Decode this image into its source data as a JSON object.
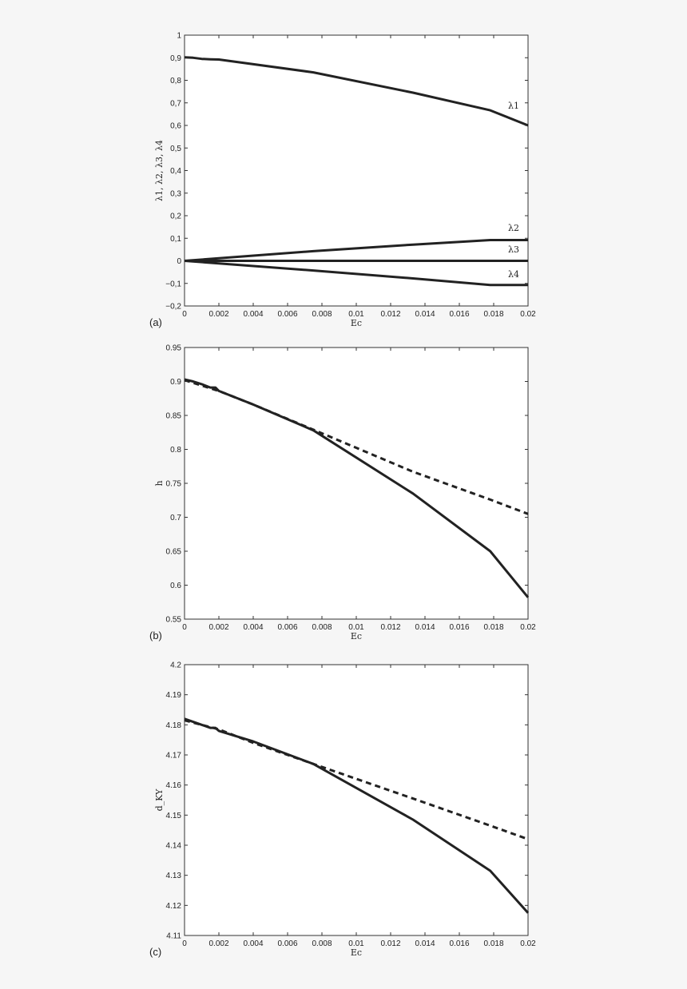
{
  "chart_data": [
    {
      "type": "line",
      "panel_label": "(a)",
      "xlabel": "Ec",
      "ylabel": "λ1, λ2, λ3, λ4",
      "xlim": [
        0,
        0.02
      ],
      "ylim": [
        -0.2,
        1
      ],
      "xticks": [
        "0",
        "0.002",
        "0.004",
        "0.006",
        "0.008",
        "0.01",
        "0.012",
        "0.014",
        "0.016",
        "0.018",
        "0.02"
      ],
      "yticks": [
        "−0,2",
        "−0,1",
        "0",
        "0,1",
        "0,2",
        "0,3",
        "0,4",
        "0,5",
        "0,6",
        "0,7",
        "0,8",
        "0,9",
        "1"
      ],
      "grid": false,
      "legend": "none",
      "series": [
        {
          "label": "λ1",
          "style": "solid",
          "x": [
            0,
            0.0005,
            0.001,
            0.0015,
            0.002,
            0.0075,
            0.0133,
            0.0178,
            0.02
          ],
          "y": [
            0.902,
            0.9,
            0.895,
            0.893,
            0.892,
            0.835,
            0.745,
            0.667,
            0.6
          ]
        },
        {
          "label": "λ2",
          "style": "solid",
          "x": [
            0,
            0.0075,
            0.0133,
            0.0178,
            0.02
          ],
          "y": [
            0,
            0.043,
            0.072,
            0.092,
            0.092
          ]
        },
        {
          "label": "λ3",
          "style": "solid",
          "x": [
            0,
            0.02
          ],
          "y": [
            0,
            0
          ]
        },
        {
          "label": "λ4",
          "style": "solid",
          "x": [
            0,
            0.0075,
            0.0133,
            0.0178,
            0.02
          ],
          "y": [
            0,
            -0.043,
            -0.078,
            -0.107,
            -0.107
          ]
        }
      ]
    },
    {
      "type": "line",
      "panel_label": "(b)",
      "xlabel": "Ec",
      "ylabel": "h",
      "xlim": [
        0,
        0.02
      ],
      "ylim": [
        0.55,
        0.95
      ],
      "xticks": [
        "0",
        "0.002",
        "0.004",
        "0.006",
        "0.008",
        "0.01",
        "0.012",
        "0.014",
        "0.016",
        "0.018",
        "0.02"
      ],
      "yticks": [
        "0.55",
        "0.6",
        "0.65",
        "0.7",
        "0.75",
        "0.8",
        "0.85",
        "0.9",
        "0.95"
      ],
      "grid": false,
      "legend": "none",
      "series": [
        {
          "style": "solid",
          "x": [
            0,
            0.0005,
            0.001,
            0.0015,
            0.0018,
            0.002,
            0.004,
            0.0075,
            0.0133,
            0.0178,
            0.02
          ],
          "y": [
            0.903,
            0.9,
            0.896,
            0.891,
            0.891,
            0.886,
            0.866,
            0.828,
            0.735,
            0.65,
            0.582
          ]
        },
        {
          "style": "dashed",
          "x": [
            0,
            0.002,
            0.004,
            0.0075,
            0.0133,
            0.0178,
            0.02
          ],
          "y": [
            0.902,
            0.886,
            0.866,
            0.829,
            0.767,
            0.726,
            0.705
          ]
        }
      ]
    },
    {
      "type": "line",
      "panel_label": "(c)",
      "xlabel": "Ec",
      "ylabel": "d_KY",
      "xlim": [
        0,
        0.02
      ],
      "ylim": [
        4.11,
        4.2
      ],
      "xticks": [
        "0",
        "0.002",
        "0.004",
        "0.006",
        "0.008",
        "0.01",
        "0.012",
        "0.014",
        "0.016",
        "0.018",
        "0.02"
      ],
      "yticks": [
        "4.11",
        "4.12",
        "4.13",
        "4.14",
        "4.15",
        "4.16",
        "4.17",
        "4.18",
        "4.19",
        "4.2"
      ],
      "grid": false,
      "legend": "none",
      "series": [
        {
          "style": "solid",
          "x": [
            0,
            0.0005,
            0.001,
            0.0015,
            0.0018,
            0.002,
            0.004,
            0.0075,
            0.0133,
            0.0178,
            0.02
          ],
          "y": [
            4.182,
            4.181,
            4.18,
            4.179,
            4.179,
            4.178,
            4.1745,
            4.167,
            4.1485,
            4.1315,
            4.1175
          ]
        },
        {
          "style": "dashed",
          "x": [
            0,
            0.002,
            0.004,
            0.0075,
            0.0133,
            0.0178,
            0.02
          ],
          "y": [
            4.1815,
            4.1785,
            4.174,
            4.167,
            4.1555,
            4.1465,
            4.142
          ]
        }
      ]
    }
  ]
}
